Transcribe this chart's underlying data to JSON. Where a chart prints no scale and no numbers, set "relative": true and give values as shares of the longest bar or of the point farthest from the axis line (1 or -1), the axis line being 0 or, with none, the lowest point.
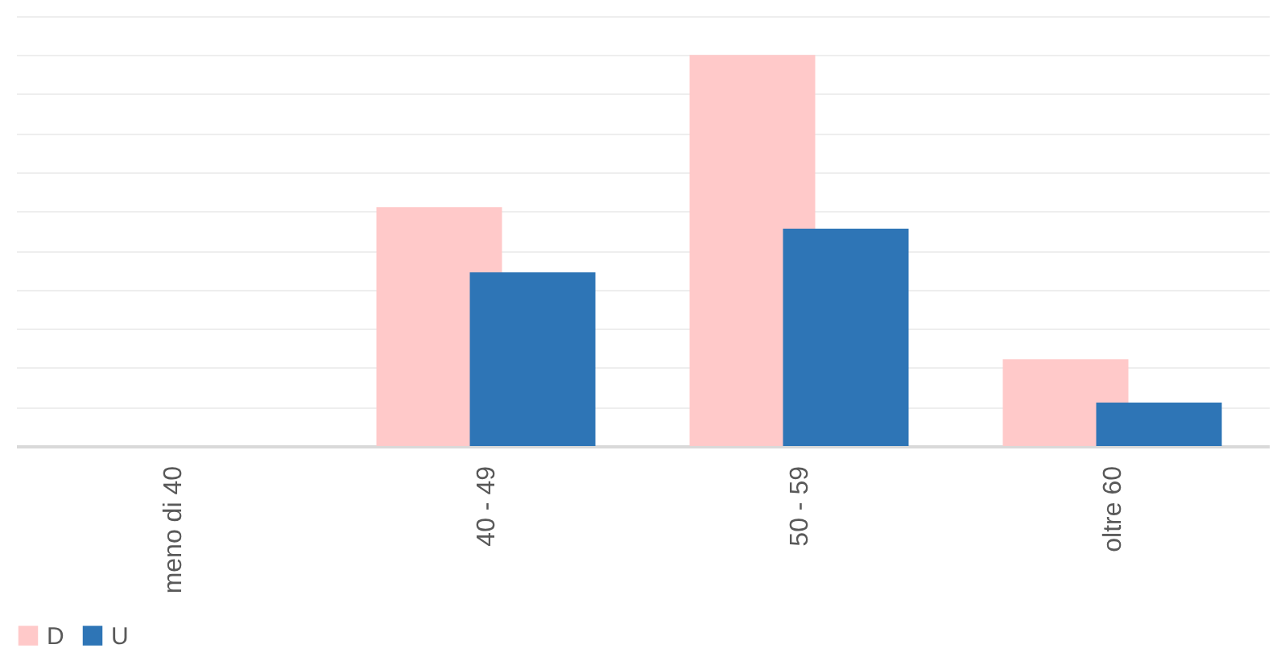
{
  "chart_data": {
    "type": "bar",
    "relative": true,
    "categories": [
      "meno di 40",
      "40 - 49",
      "50 - 59",
      "oltre 60"
    ],
    "series": [
      {
        "name": "D",
        "color": "#ffc9c9",
        "values": [
          0,
          0.611,
          1,
          0.222
        ]
      },
      {
        "name": "U",
        "color": "#2e75b6",
        "values": [
          0,
          0.444,
          0.556,
          0.111
        ]
      }
    ],
    "grid": "y",
    "legend": "bottom"
  }
}
